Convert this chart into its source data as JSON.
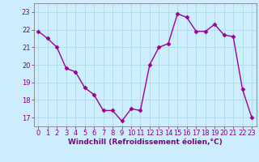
{
  "x": [
    0,
    1,
    2,
    3,
    4,
    5,
    6,
    7,
    8,
    9,
    10,
    11,
    12,
    13,
    14,
    15,
    16,
    17,
    18,
    19,
    20,
    21,
    22,
    23
  ],
  "y": [
    21.9,
    21.5,
    21.0,
    19.8,
    19.6,
    18.7,
    18.3,
    17.4,
    17.4,
    16.8,
    17.5,
    17.4,
    20.0,
    21.0,
    21.2,
    22.9,
    22.7,
    21.9,
    21.9,
    22.3,
    21.7,
    21.6,
    18.6,
    17.0
  ],
  "line_color": "#990099",
  "marker": "D",
  "markersize": 2.5,
  "linewidth": 1.0,
  "bg_color": "#cceeff",
  "grid_color": "#aadddd",
  "xlabel": "Windchill (Refroidissement éolien,°C)",
  "xlim": [
    -0.5,
    23.5
  ],
  "ylim": [
    16.5,
    23.5
  ],
  "yticks": [
    17,
    18,
    19,
    20,
    21,
    22,
    23
  ],
  "xticks": [
    0,
    1,
    2,
    3,
    4,
    5,
    6,
    7,
    8,
    9,
    10,
    11,
    12,
    13,
    14,
    15,
    16,
    17,
    18,
    19,
    20,
    21,
    22,
    23
  ],
  "xlabel_fontsize": 6.5,
  "tick_fontsize": 6.0,
  "xlabel_color": "#800080",
  "tick_color": "#800080",
  "spine_color": "#808080"
}
